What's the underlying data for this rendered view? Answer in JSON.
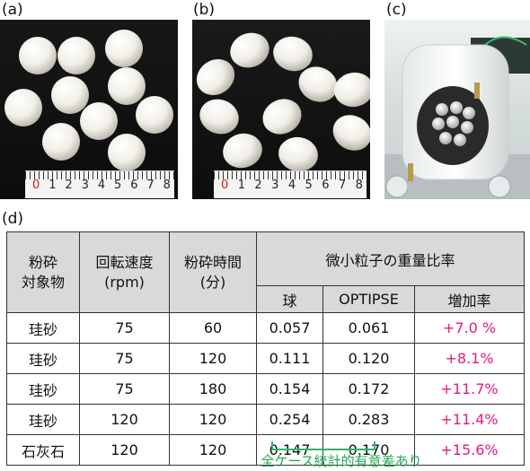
{
  "panels": {
    "a_label": "(a)",
    "b_label": "(b)",
    "c_label": "(c)",
    "d_label": "(d)"
  },
  "ruler_numbers": [
    "0",
    "1",
    "2",
    "3",
    "4",
    "5",
    "6",
    "7",
    "8"
  ],
  "table": {
    "header": {
      "material": "粉砕\n対象物",
      "speed": "回転速度\n(rpm)",
      "time": "粉砕時間\n(分)",
      "ratio_group": "微小粒子の重量比率",
      "sub": [
        "球",
        "OPTIPSE",
        "増加率"
      ]
    },
    "rows": [
      {
        "material": "珪砂",
        "speed": "75",
        "time": "60",
        "ball": "0.057",
        "optipse": "0.061",
        "increase": "+7.0 %"
      },
      {
        "material": "珪砂",
        "speed": "75",
        "time": "120",
        "ball": "0.111",
        "optipse": "0.120",
        "increase": "+8.1%"
      },
      {
        "material": "珪砂",
        "speed": "75",
        "time": "180",
        "ball": "0.154",
        "optipse": "0.172",
        "increase": "+11.7%"
      },
      {
        "material": "珪砂",
        "speed": "120",
        "time": "120",
        "ball": "0.254",
        "optipse": "0.283",
        "increase": "+11.4%"
      },
      {
        "material": "石灰石",
        "speed": "120",
        "time": "120",
        "ball": "0.147",
        "optipse": "0.170",
        "increase": "+15.6%"
      }
    ]
  },
  "annotation": "全ケース統計的有意差あり",
  "colors": {
    "increase": "#e6197e",
    "annotation": "#1fa94e"
  }
}
